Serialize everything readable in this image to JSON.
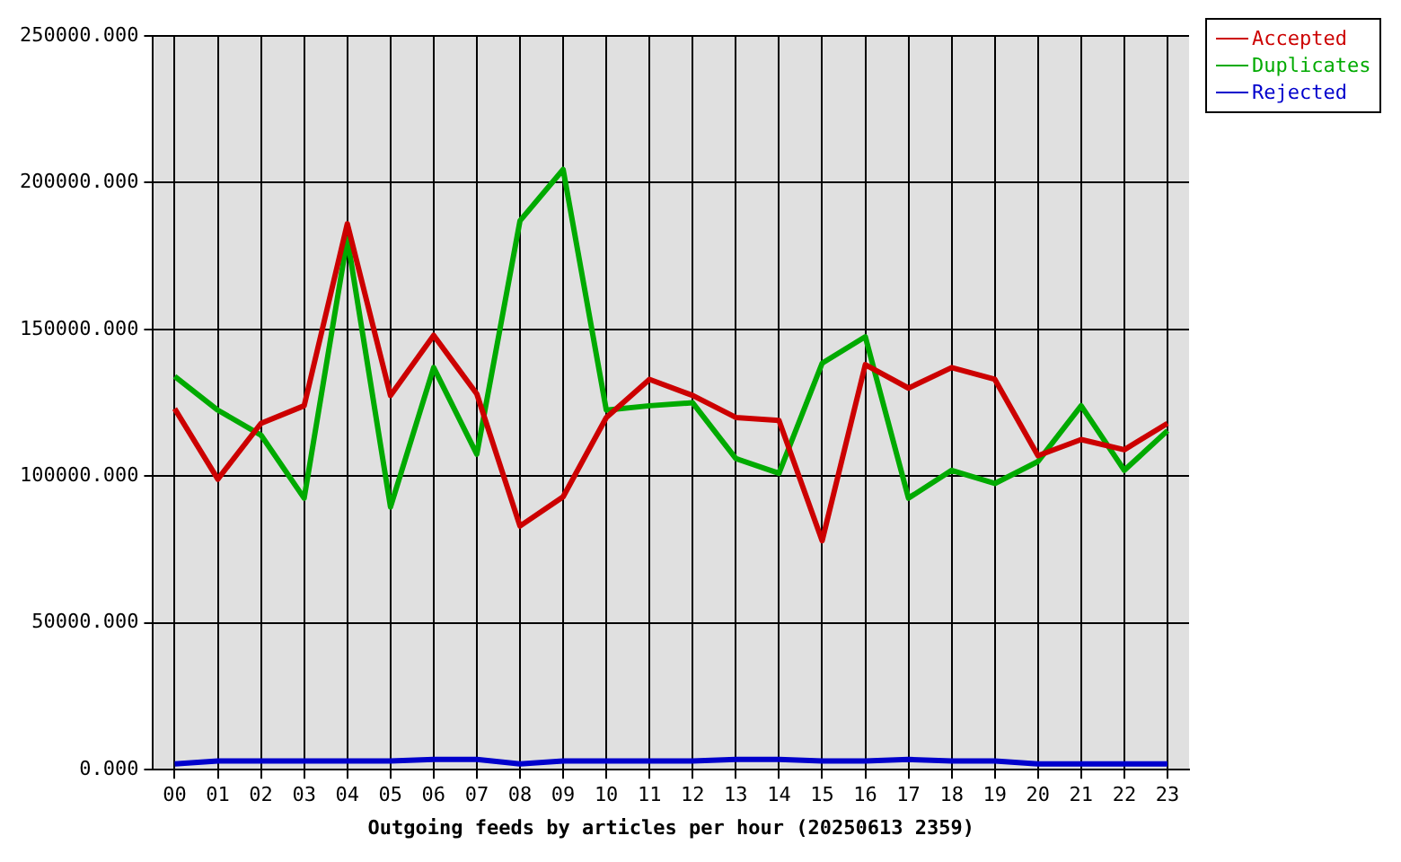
{
  "chart_data": {
    "type": "line",
    "xlabel": "Outgoing feeds by articles per hour (20250613 2359)",
    "categories": [
      "00",
      "01",
      "02",
      "03",
      "04",
      "05",
      "06",
      "07",
      "08",
      "09",
      "10",
      "11",
      "12",
      "13",
      "14",
      "15",
      "16",
      "17",
      "18",
      "19",
      "20",
      "21",
      "22",
      "23"
    ],
    "series": [
      {
        "name": "Accepted",
        "color": "#cc0000",
        "values": [
          123000,
          99000,
          118000,
          124000,
          186000,
          127500,
          148000,
          128000,
          83000,
          93000,
          120000,
          133000,
          127500,
          120000,
          119000,
          78000,
          138000,
          130000,
          137000,
          133000,
          107000,
          112500,
          109000,
          118000
        ]
      },
      {
        "name": "Duplicates",
        "color": "#00aa00",
        "values": [
          134000,
          122500,
          114000,
          92500,
          181000,
          89500,
          137000,
          107500,
          187000,
          204500,
          122500,
          124000,
          125000,
          106000,
          101000,
          138500,
          147500,
          92500,
          102000,
          97500,
          105000,
          124000,
          102000,
          115500
        ]
      },
      {
        "name": "Rejected",
        "color": "#0000cc",
        "values": [
          2000,
          3000,
          3000,
          3000,
          3000,
          3000,
          3500,
          3500,
          2000,
          3000,
          3000,
          3000,
          3000,
          3500,
          3500,
          3000,
          3000,
          3500,
          3000,
          3000,
          2000,
          2000,
          2000,
          2000
        ]
      }
    ],
    "ylim": [
      0,
      250000
    ],
    "yticks": [
      {
        "value": 0,
        "label": "0.000"
      },
      {
        "value": 50000,
        "label": "50000.000"
      },
      {
        "value": 100000,
        "label": "100000.000"
      },
      {
        "value": 150000,
        "label": "150000.000"
      },
      {
        "value": 200000,
        "label": "200000.000"
      },
      {
        "value": 250000,
        "label": "250000.000"
      }
    ],
    "grid": true,
    "legend": "top right",
    "marker": "none",
    "line_style": "solid"
  }
}
